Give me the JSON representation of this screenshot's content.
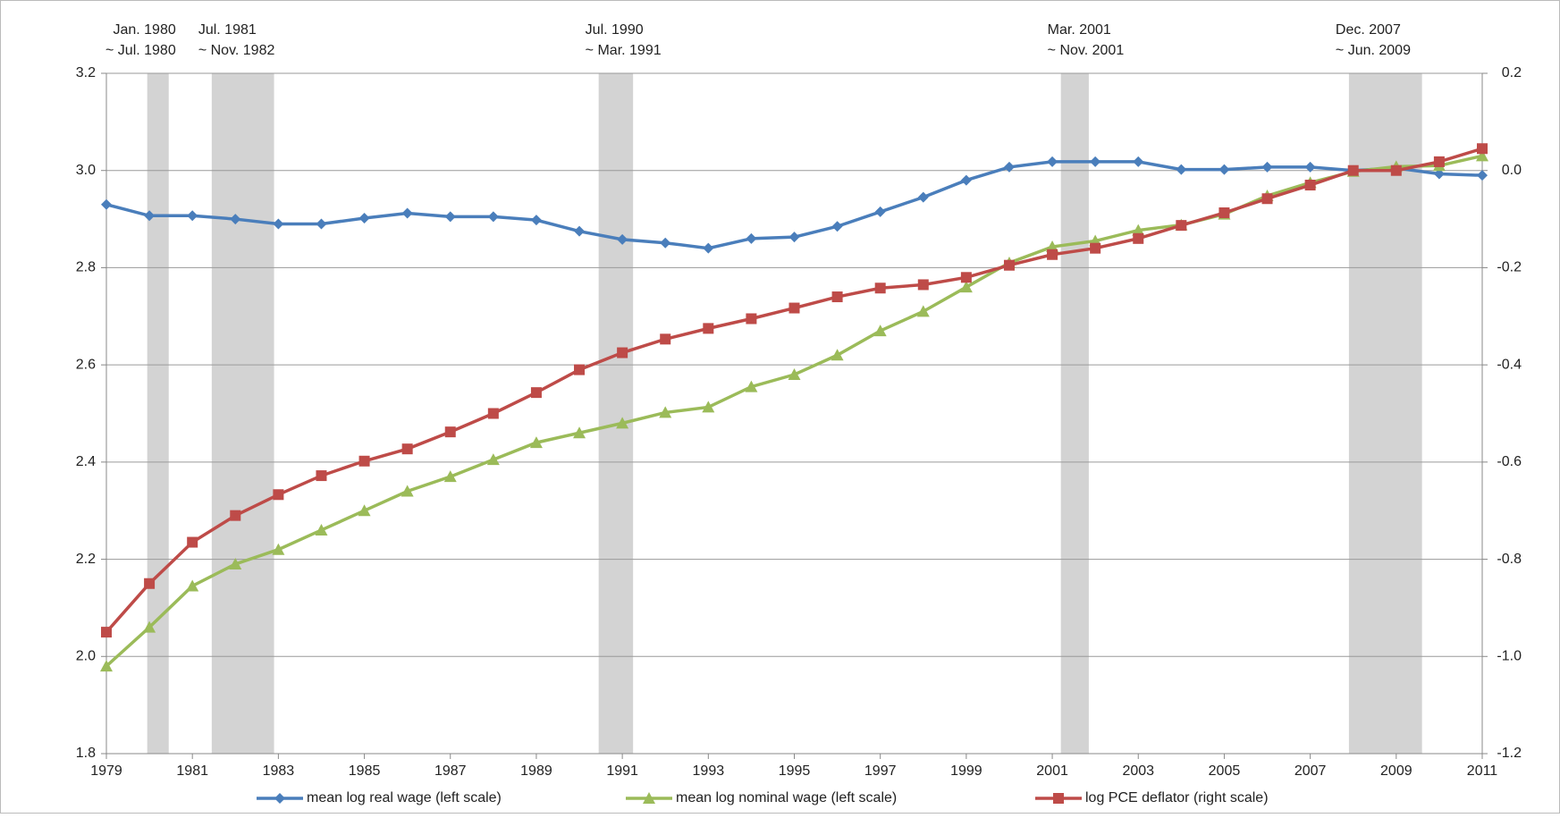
{
  "chart_data": {
    "type": "line",
    "x": [
      1979,
      1980,
      1981,
      1982,
      1983,
      1984,
      1985,
      1986,
      1987,
      1988,
      1989,
      1990,
      1991,
      1992,
      1993,
      1994,
      1995,
      1996,
      1997,
      1998,
      1999,
      2000,
      2001,
      2002,
      2003,
      2004,
      2005,
      2006,
      2007,
      2008,
      2009,
      2010,
      2011
    ],
    "xlim": [
      1979,
      2011
    ],
    "xticks": [
      1979,
      1981,
      1983,
      1985,
      1987,
      1989,
      1991,
      1993,
      1995,
      1997,
      1999,
      2001,
      2003,
      2005,
      2007,
      2009,
      2011
    ],
    "ylim": [
      1.8,
      3.2
    ],
    "yticks": [
      1.8,
      {
        "value": 2,
        "label": "2.0"
      },
      2.2,
      2.4,
      2.6,
      2.8,
      {
        "value": 3,
        "label": "3.0"
      },
      3.2
    ],
    "y2lim": [
      -1.2,
      0.2
    ],
    "y2ticks": [
      -1.2,
      {
        "value": -1,
        "label": "-1.0"
      },
      -0.8,
      -0.6,
      -0.4,
      -0.2,
      {
        "value": 0,
        "label": "0.0"
      },
      0.2
    ],
    "grid": true,
    "legend": "bottom",
    "recession_color": "#d3d3d3",
    "recessions": [
      {
        "from": "Jan. 1980",
        "to": "~ Jul. 1980",
        "start": 1979.95,
        "end": 1980.45
      },
      {
        "from": "Jul. 1981",
        "to": "~ Nov. 1982",
        "start": 1981.45,
        "end": 1982.9
      },
      {
        "from": "Jul. 1990",
        "to": "~ Mar. 1991",
        "start": 1990.45,
        "end": 1991.25
      },
      {
        "from": "Mar. 2001",
        "to": "~ Nov. 2001",
        "start": 2001.2,
        "end": 2001.85
      },
      {
        "from": "Dec. 2007",
        "to": "~ Jun. 2009",
        "start": 2007.9,
        "end": 2009.6
      }
    ],
    "series": [
      {
        "name": "mean log real wage (left scale)",
        "color": "#4a7ebb",
        "marker": "diamond",
        "values": [
          2.93,
          2.907,
          2.907,
          2.9,
          2.89,
          2.89,
          2.902,
          2.912,
          2.905,
          2.905,
          2.898,
          2.875,
          2.858,
          2.851,
          2.84,
          2.86,
          2.863,
          2.885,
          2.915,
          2.945,
          2.98,
          3.007,
          3.018,
          3.018,
          3.018,
          3.002,
          3.002,
          3.007,
          3.007,
          3.0,
          3.005,
          2.993,
          2.99
        ]
      },
      {
        "name": "mean log nominal wage (left scale)",
        "color": "#9bbb59",
        "marker": "triangle",
        "values": [
          1.98,
          2.06,
          2.145,
          2.19,
          2.22,
          2.26,
          2.3,
          2.34,
          2.37,
          2.405,
          2.44,
          2.46,
          2.48,
          2.502,
          2.513,
          2.555,
          2.58,
          2.62,
          2.67,
          2.71,
          2.76,
          2.81,
          2.843,
          2.855,
          2.877,
          2.888,
          2.91,
          2.948,
          2.975,
          2.998,
          3.008,
          3.01,
          3.03
        ]
      },
      {
        "name": "log PCE deflator (right scale)",
        "color": "#be4b48",
        "marker": "square",
        "axis": "y2",
        "values": [
          -0.95,
          -0.85,
          -0.765,
          -0.71,
          -0.667,
          -0.628,
          -0.598,
          -0.573,
          -0.538,
          -0.5,
          -0.457,
          -0.41,
          -0.375,
          -0.347,
          -0.325,
          -0.305,
          -0.283,
          -0.26,
          -0.242,
          -0.235,
          -0.22,
          -0.195,
          -0.173,
          -0.16,
          -0.14,
          -0.113,
          -0.087,
          -0.058,
          -0.03,
          0.0,
          0.0,
          0.018,
          0.045
        ]
      }
    ]
  }
}
